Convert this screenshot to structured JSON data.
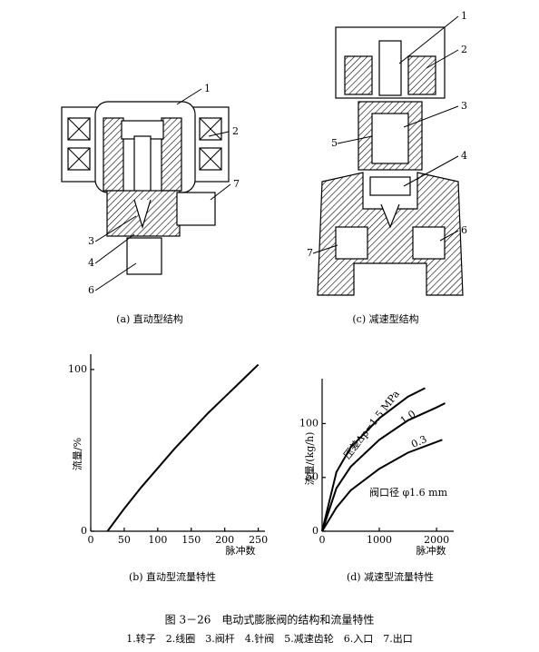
{
  "chart_data": [
    {
      "type": "line",
      "title": "(b) 直动型流量特性",
      "x_label": "脉冲数",
      "y_label": "流量/%",
      "xlim": [
        0,
        260
      ],
      "ylim": [
        0,
        105
      ],
      "xticks": [
        0,
        50,
        100,
        150,
        200,
        250
      ],
      "yticks": [
        0,
        100
      ],
      "series": [
        {
          "color": "#000000",
          "x": [
            25,
            50,
            75,
            100,
            125,
            150,
            175,
            200,
            225,
            250
          ],
          "values": [
            0,
            14,
            27,
            39,
            51,
            62,
            73,
            83,
            93,
            103
          ]
        }
      ]
    },
    {
      "type": "line",
      "title": "(d) 减速型流量特性",
      "x_label": "脉冲数",
      "y_label": "流量/(kg/h)",
      "xlim": [
        0,
        2300
      ],
      "ylim": [
        0,
        135
      ],
      "xticks": [
        0,
        1000,
        2000
      ],
      "yticks": [
        0,
        50,
        100
      ],
      "annotation": "阀口径 φ1.6 mm",
      "series": [
        {
          "name": "压差Δp=1.5 MPa",
          "color": "#000000",
          "x": [
            0,
            250,
            500,
            1000,
            1500,
            1800
          ],
          "values": [
            0,
            55,
            78,
            105,
            125,
            133
          ]
        },
        {
          "name": "1.0",
          "color": "#000000",
          "x": [
            0,
            250,
            500,
            1000,
            1500,
            2000,
            2150
          ],
          "values": [
            0,
            40,
            60,
            85,
            103,
            115,
            119
          ]
        },
        {
          "name": "0.3",
          "color": "#000000",
          "x": [
            0,
            250,
            500,
            1000,
            1500,
            2000,
            2100
          ],
          "values": [
            0,
            22,
            38,
            58,
            73,
            83,
            85
          ]
        }
      ]
    }
  ],
  "diagrams": [
    {
      "title": "(a) 直动型结构",
      "labels": [
        "1",
        "2",
        "7",
        "3",
        "4",
        "6"
      ]
    },
    {
      "title": "(c) 减速型结构",
      "labels": [
        "1",
        "2",
        "3",
        "5",
        "4",
        "6",
        "7"
      ]
    }
  ],
  "caption": {
    "title": "图 3－26　电动式膨胀阀的结构和流量特性",
    "legend": "1.转子　2.线圈　3.阀杆　4.针阀　5.减速齿轮　6.入口　7.出口"
  }
}
